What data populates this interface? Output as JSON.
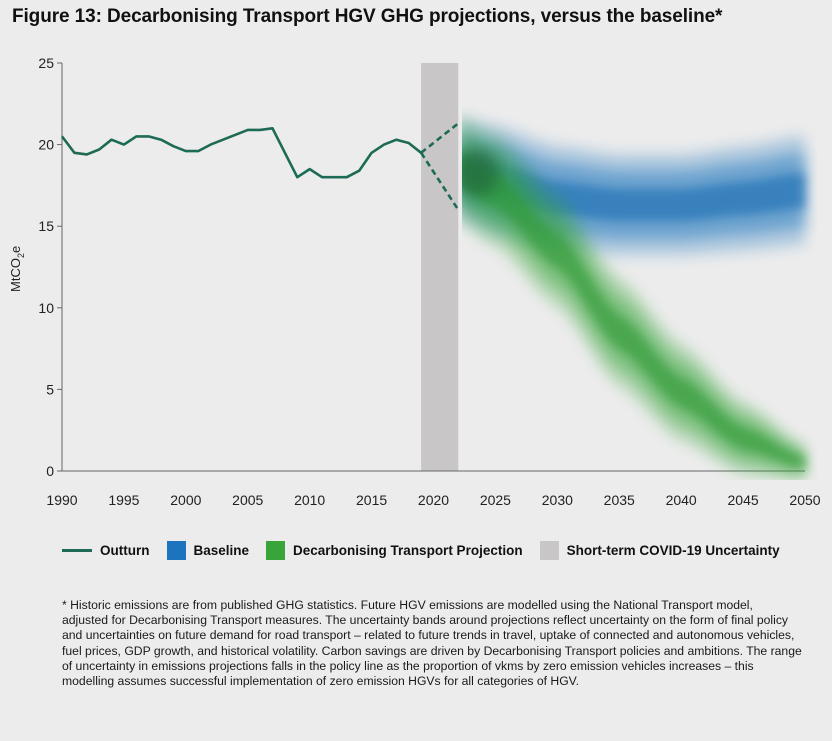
{
  "title": "Figure 13: Decarbonising Transport HGV GHG projections, versus the baseline*",
  "chart_data": {
    "type": "line",
    "ylabel": "MtCO2e",
    "ylim": [
      0,
      25
    ],
    "yticks": [
      0,
      5,
      10,
      15,
      20,
      25
    ],
    "xlim": [
      1990,
      2050
    ],
    "xticks": [
      "1990",
      "1995",
      "2000",
      "2005",
      "2010",
      "2015",
      "2020",
      "2025",
      "2030",
      "2035",
      "2040",
      "2045",
      "2050"
    ],
    "covid_band": [
      2019,
      2022
    ],
    "outturn": {
      "x": [
        1990,
        1991,
        1992,
        1993,
        1994,
        1995,
        1996,
        1997,
        1998,
        1999,
        2000,
        2001,
        2002,
        2003,
        2004,
        2005,
        2006,
        2007,
        2008,
        2009,
        2010,
        2011,
        2012,
        2013,
        2014,
        2015,
        2016,
        2017,
        2018,
        2019
      ],
      "y": [
        20.5,
        19.5,
        19.4,
        19.7,
        20.3,
        20.0,
        20.5,
        20.5,
        20.3,
        19.9,
        19.6,
        19.6,
        20.0,
        20.3,
        20.6,
        20.9,
        20.9,
        21.0,
        19.5,
        18.0,
        18.5,
        18.0,
        18.0,
        18.0,
        18.4,
        19.5,
        20.0,
        20.3,
        20.1,
        19.5
      ]
    },
    "covid_paths": {
      "upper": {
        "x": [
          2019,
          2022
        ],
        "y": [
          19.5,
          21.3
        ]
      },
      "lower": {
        "x": [
          2019,
          2022
        ],
        "y": [
          19.5,
          16.0
        ]
      }
    },
    "baseline": {
      "x": [
        2022,
        2025,
        2030,
        2035,
        2040,
        2045,
        2050
      ],
      "y": [
        18.5,
        17.8,
        16.7,
        16.3,
        16.3,
        16.7,
        17.2
      ],
      "spread": [
        2.5,
        2.7,
        2.6,
        2.5,
        2.5,
        2.6,
        2.7
      ]
    },
    "decarbonising": {
      "x": [
        2022,
        2025,
        2030,
        2035,
        2040,
        2045,
        2050
      ],
      "y": [
        18.5,
        17.2,
        13.5,
        8.5,
        4.8,
        2.0,
        0.5
      ],
      "spread": [
        2.6,
        2.8,
        2.8,
        2.7,
        2.4,
        1.8,
        0.9
      ]
    },
    "colors": {
      "outturn": "#1d6b55",
      "baseline": "#1b74bd",
      "decarbonising": "#38a53a",
      "covid": "#c9c6c8",
      "axis": "#666666"
    }
  },
  "legend": [
    {
      "label": "Outturn",
      "kind": "line",
      "color": "#1d6b55"
    },
    {
      "label": "Baseline",
      "kind": "box",
      "color": "#1b74bd"
    },
    {
      "label": "Decarbonising Transport Projection",
      "kind": "box",
      "color": "#38a53a"
    },
    {
      "label": "Short-term COVID-19 Uncertainty",
      "kind": "box",
      "color": "#c9c6c8"
    }
  ],
  "footnote": "* Historic emissions are from published GHG statistics. Future HGV emissions are modelled using the National Transport model, adjusted for Decarbonising Transport measures. The uncertainty bands around projections reflect uncertainty on the form of final policy and uncertainties on future demand for road transport – related to future trends in travel, uptake of connected and autonomous vehicles, fuel prices, GDP growth, and historical volatility. Carbon savings are driven by Decarbonising Transport policies and ambitions. The range of uncertainty in emissions projections falls in the policy line as the proportion of vkms by zero emission vehicles increases – this modelling assumes successful implementation of zero emission HGVs for all categories of HGV."
}
